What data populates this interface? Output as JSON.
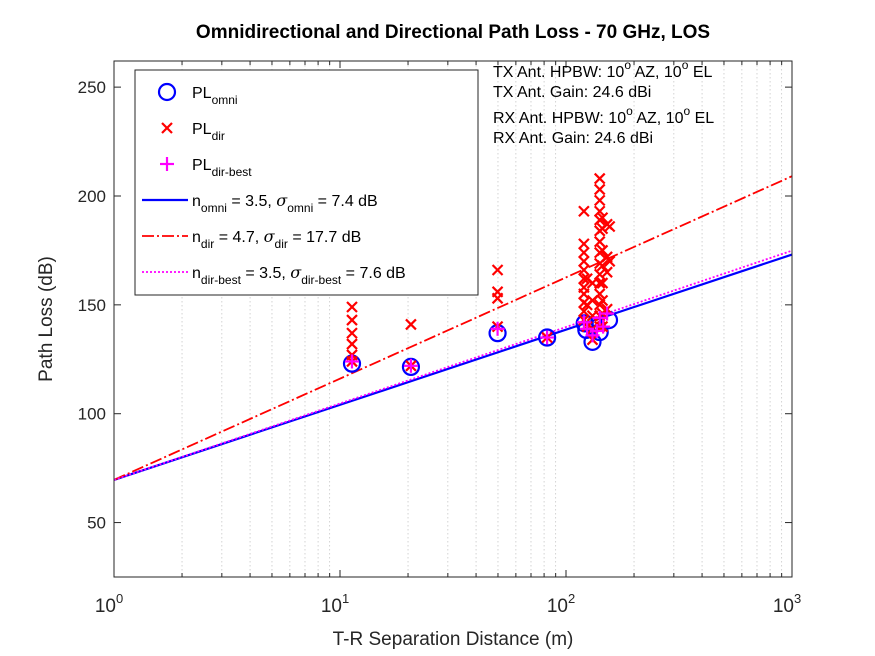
{
  "chart_data": {
    "type": "scatter",
    "title": "Omnidirectional and Directional Path Loss - 70 GHz, LOS",
    "xlabel": "T-R Separation Distance (m)",
    "ylabel": "Path Loss (dB)",
    "x_scale": "log",
    "xlim": [
      1,
      1000
    ],
    "ylim": [
      25,
      262
    ],
    "y_ticks": [
      50,
      100,
      150,
      200,
      250
    ],
    "x_tick_labels": [
      {
        "base": "10",
        "exp": "0"
      },
      {
        "base": "10",
        "exp": "1"
      },
      {
        "base": "10",
        "exp": "2"
      },
      {
        "base": "10",
        "exp": "3"
      }
    ],
    "x_ticks": [
      1,
      10,
      100,
      1000
    ],
    "grid": "x-minor-dotted",
    "legend_position": "top-left",
    "annotations": [
      {
        "parts": [
          [
            "TX Ant. HPBW: 10",
            ""
          ],
          [
            "o",
            "sup"
          ],
          [
            " AZ, 10",
            ""
          ],
          [
            "o",
            "sup"
          ],
          [
            " EL",
            ""
          ]
        ]
      },
      {
        "parts": [
          [
            "TX Ant. Gain: 24.6 dBi",
            ""
          ]
        ]
      },
      {
        "parts": [
          [
            "RX Ant. HPBW: 10",
            ""
          ],
          [
            "o",
            "sup"
          ],
          [
            " AZ, 10",
            ""
          ],
          [
            "o",
            "sup"
          ],
          [
            " EL",
            ""
          ]
        ]
      },
      {
        "parts": [
          [
            "RX Ant. Gain: 24.6 dBi",
            ""
          ]
        ]
      }
    ],
    "series": [
      {
        "key": "pl_omni",
        "kind": "scatter",
        "marker": "circle",
        "color": "#0000ff",
        "legend_parts": [
          [
            "PL",
            ""
          ],
          [
            "omni",
            "sub"
          ]
        ],
        "points": [
          [
            11.3,
            123
          ],
          [
            20.6,
            121.5
          ],
          [
            49.8,
            137
          ],
          [
            82.5,
            135
          ],
          [
            121,
            141.5
          ],
          [
            123,
            138.5
          ],
          [
            131,
            133
          ],
          [
            141,
            137.5
          ],
          [
            155,
            143
          ]
        ]
      },
      {
        "key": "pl_dir",
        "kind": "scatter",
        "marker": "x",
        "color": "#ff0000",
        "legend_parts": [
          [
            "PL",
            ""
          ],
          [
            "dir",
            "sub"
          ]
        ],
        "points": [
          [
            11.3,
            149
          ],
          [
            11.3,
            143
          ],
          [
            11.3,
            137
          ],
          [
            11.3,
            132
          ],
          [
            11.3,
            127
          ],
          [
            11.3,
            124
          ],
          [
            20.6,
            141
          ],
          [
            20.6,
            122
          ],
          [
            49.8,
            166
          ],
          [
            49.8,
            156
          ],
          [
            49.8,
            153
          ],
          [
            49.8,
            140
          ],
          [
            82.5,
            135
          ],
          [
            120,
            193
          ],
          [
            120,
            178
          ],
          [
            120,
            174
          ],
          [
            120,
            170
          ],
          [
            120,
            166
          ],
          [
            120,
            162
          ],
          [
            120,
            158
          ],
          [
            120,
            155
          ],
          [
            120,
            151
          ],
          [
            120,
            147
          ],
          [
            120,
            143
          ],
          [
            124,
            162
          ],
          [
            124,
            150
          ],
          [
            124,
            140
          ],
          [
            131,
            160
          ],
          [
            131,
            152
          ],
          [
            131,
            145
          ],
          [
            131,
            139
          ],
          [
            131,
            134
          ],
          [
            141,
            208
          ],
          [
            141,
            203
          ],
          [
            141,
            198
          ],
          [
            141,
            193
          ],
          [
            141,
            189
          ],
          [
            141,
            184
          ],
          [
            141,
            179
          ],
          [
            141,
            174
          ],
          [
            141,
            169
          ],
          [
            141,
            164
          ],
          [
            141,
            160
          ],
          [
            141,
            155
          ],
          [
            141,
            150
          ],
          [
            141,
            145
          ],
          [
            141,
            140
          ],
          [
            145,
            190
          ],
          [
            145,
            185
          ],
          [
            145,
            175
          ],
          [
            145,
            168
          ],
          [
            145,
            160
          ],
          [
            145,
            152
          ],
          [
            145,
            146
          ],
          [
            145,
            140
          ],
          [
            152,
            187
          ],
          [
            152,
            172
          ],
          [
            152,
            165
          ],
          [
            152,
            148
          ],
          [
            156,
            186
          ],
          [
            156,
            170
          ]
        ]
      },
      {
        "key": "pl_dir_best",
        "kind": "scatter",
        "marker": "plus",
        "color": "#ff00ff",
        "legend_parts": [
          [
            "PL",
            ""
          ],
          [
            "dir-best",
            "sub"
          ]
        ],
        "points": [
          [
            11.3,
            124
          ],
          [
            20.6,
            122
          ],
          [
            49.8,
            139
          ],
          [
            82.5,
            135
          ],
          [
            120,
            142
          ],
          [
            124,
            139
          ],
          [
            131,
            136
          ],
          [
            137,
            138
          ],
          [
            141,
            144
          ],
          [
            146,
            140
          ],
          [
            152,
            146
          ]
        ]
      },
      {
        "key": "fit_omni",
        "kind": "line",
        "style": "solid",
        "color": "#0000ff",
        "legend_parts": [
          [
            "n",
            ""
          ],
          [
            "omni",
            "sub"
          ],
          [
            " = 3.5, ",
            ""
          ],
          [
            "σ",
            "sym"
          ],
          [
            "omni",
            "sub"
          ],
          [
            " = 7.4 dB",
            ""
          ]
        ],
        "intercept": 69.6,
        "slope_db_per_decade": 34.5
      },
      {
        "key": "fit_dir",
        "kind": "line",
        "style": "dashdot",
        "color": "#ff0000",
        "legend_parts": [
          [
            "n",
            ""
          ],
          [
            "dir",
            "sub"
          ],
          [
            " = 4.7, ",
            ""
          ],
          [
            "σ",
            "sym"
          ],
          [
            "dir",
            "sub"
          ],
          [
            " = 17.7 dB",
            ""
          ]
        ],
        "intercept": 69.6,
        "slope_db_per_decade": 46.5
      },
      {
        "key": "fit_dir_best",
        "kind": "line",
        "style": "dotted",
        "color": "#ff00ff",
        "legend_parts": [
          [
            "n",
            ""
          ],
          [
            "dir-best",
            "sub"
          ],
          [
            " = 3.5, ",
            ""
          ],
          [
            "σ",
            "sym"
          ],
          [
            "dir-best",
            "sub"
          ],
          [
            " = 7.6 dB",
            ""
          ]
        ],
        "intercept": 69.6,
        "slope_db_per_decade": 35.1
      }
    ]
  }
}
